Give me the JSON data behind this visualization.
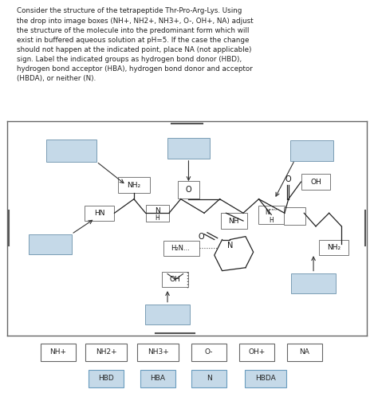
{
  "title_text": "Consider the structure of the tetrapeptide Thr-Pro-Arg-Lys. Using\nthe drop into image boxes (NH+, NH2+, NH3+, O-, OH+, NA) adjust\nthe structure of the molecule into the predominant form which will\nexist in buffered aqueous solution at pH=5. If the case the change\nshould not happen at the indicated point, place NA (not applicable)\nsign. Label the indicated groups as hydrogen bond donor (HBD),\nhydrogen bond acceptor (HBA), hydrogen bond donor and acceptor\n(HBDA), or neither (N).",
  "bg_color": "#ffffff",
  "blue_box": "#c5d9e8",
  "white_box": "#ffffff",
  "border_color": "#555555",
  "text_color": "#333333",
  "button_row1": [
    "NH+",
    "NH2+",
    "NH3+",
    "O-",
    "OH+",
    "NA"
  ],
  "button_row2": [
    "HBD",
    "HBA",
    "N",
    "HBDA"
  ],
  "figsize": [
    4.69,
    4.98
  ],
  "dpi": 100
}
